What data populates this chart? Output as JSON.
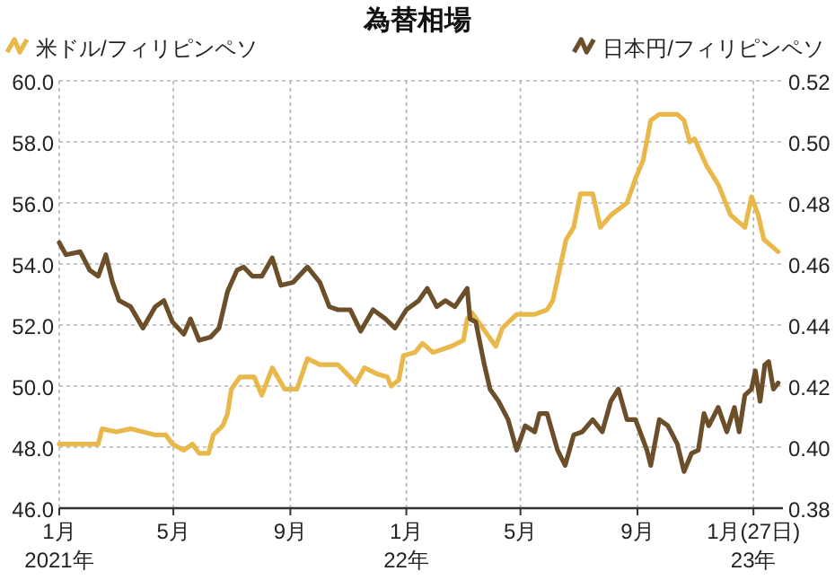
{
  "chart_data": {
    "type": "line",
    "title": "為替相場",
    "legend": "top",
    "grid": true,
    "line_style": "solid",
    "xlim": [
      "2021-01-01",
      "2023-02-01"
    ],
    "xticks": [
      {
        "value": "2021-01-01",
        "label": "1月\n2021年"
      },
      {
        "value": "2021-05-01",
        "label": "5月"
      },
      {
        "value": "2021-09-01",
        "label": "9月"
      },
      {
        "value": "2022-01-01",
        "label": "1月\n22年"
      },
      {
        "value": "2022-05-01",
        "label": "5月"
      },
      {
        "value": "2022-09-01",
        "label": "9月"
      },
      {
        "value": "2023-01-01",
        "label": "1月(27日)\n23年"
      }
    ],
    "ylim": [
      46,
      60
    ],
    "yticks": [
      {
        "value": 46,
        "label": "46.0"
      },
      {
        "value": 48,
        "label": "48.0"
      },
      {
        "value": 50,
        "label": "50.0"
      },
      {
        "value": 52,
        "label": "52.0"
      },
      {
        "value": 54,
        "label": "54.0"
      },
      {
        "value": 56,
        "label": "56.0"
      },
      {
        "value": 58,
        "label": "58.0"
      },
      {
        "value": 60,
        "label": "60.0"
      }
    ],
    "y2lim": [
      0.38,
      0.52
    ],
    "y2ticks": [
      {
        "value": 0.38,
        "label": "0.38"
      },
      {
        "value": 0.4,
        "label": "0.40"
      },
      {
        "value": 0.42,
        "label": "0.42"
      },
      {
        "value": 0.44,
        "label": "0.44"
      },
      {
        "value": 0.46,
        "label": "0.46"
      },
      {
        "value": 0.48,
        "label": "0.48"
      },
      {
        "value": 0.5,
        "label": "0.50"
      },
      {
        "value": 0.52,
        "label": "0.52"
      }
    ],
    "series": [
      {
        "name": "米ドル/フィリピンペソ",
        "color": "#e8b84a",
        "axis": "y",
        "x": [
          "2021-01-01",
          "2021-01-23",
          "2021-02-11",
          "2021-02-15",
          "2021-03-02",
          "2021-03-17",
          "2021-03-30",
          "2021-04-12",
          "2021-04-23",
          "2021-04-30",
          "2021-05-12",
          "2021-05-21",
          "2021-05-28",
          "2021-06-07",
          "2021-06-12",
          "2021-06-22",
          "2021-06-27",
          "2021-07-01",
          "2021-07-10",
          "2021-07-25",
          "2021-08-02",
          "2021-08-13",
          "2021-08-26",
          "2021-09-08",
          "2021-09-19",
          "2021-10-02",
          "2021-10-21",
          "2021-11-09",
          "2021-11-18",
          "2021-12-01",
          "2021-12-12",
          "2021-12-16",
          "2021-12-24",
          "2021-12-29",
          "2022-01-10",
          "2022-01-18",
          "2022-01-29",
          "2022-02-17",
          "2022-03-02",
          "2022-03-06",
          "2022-03-11",
          "2022-04-05",
          "2022-04-12",
          "2022-04-27",
          "2022-05-16",
          "2022-05-29",
          "2022-06-04",
          "2022-06-18",
          "2022-06-26",
          "2022-07-03",
          "2022-07-16",
          "2022-07-24",
          "2022-08-04",
          "2022-08-21",
          "2022-08-30",
          "2022-09-07",
          "2022-09-15",
          "2022-09-24",
          "2022-10-13",
          "2022-10-20",
          "2022-10-26",
          "2022-10-31",
          "2022-11-13",
          "2022-11-25",
          "2022-12-08",
          "2022-12-23",
          "2022-12-30",
          "2023-01-06",
          "2023-01-12",
          "2023-01-27"
        ],
        "values": [
          48.1,
          48.1,
          48.1,
          48.6,
          48.5,
          48.6,
          48.5,
          48.4,
          48.4,
          48.1,
          47.9,
          48.1,
          47.8,
          47.8,
          48.4,
          48.7,
          49.1,
          49.9,
          50.3,
          50.3,
          49.7,
          50.6,
          49.9,
          49.9,
          50.9,
          50.7,
          50.7,
          50.1,
          50.6,
          50.4,
          50.3,
          50.0,
          50.2,
          51.0,
          51.1,
          51.4,
          51.1,
          51.3,
          51.5,
          52.2,
          52.4,
          51.3,
          51.9,
          52.35,
          52.35,
          52.5,
          52.8,
          54.8,
          55.2,
          56.3,
          56.3,
          55.2,
          55.6,
          56.0,
          56.8,
          57.4,
          58.7,
          58.9,
          58.9,
          58.7,
          58.0,
          58.1,
          57.2,
          56.6,
          55.6,
          55.2,
          56.2,
          55.6,
          54.8,
          54.4
        ]
      },
      {
        "name": "日本円/フィリピンペソ",
        "color": "#6b4f2a",
        "axis": "y2",
        "x": [
          "2021-01-01",
          "2021-01-08",
          "2021-01-23",
          "2021-02-02",
          "2021-02-11",
          "2021-02-19",
          "2021-02-26",
          "2021-03-05",
          "2021-03-17",
          "2021-03-30",
          "2021-04-12",
          "2021-04-21",
          "2021-04-30",
          "2021-05-12",
          "2021-05-19",
          "2021-05-28",
          "2021-06-09",
          "2021-06-18",
          "2021-06-27",
          "2021-07-07",
          "2021-07-14",
          "2021-07-23",
          "2021-08-02",
          "2021-08-13",
          "2021-08-22",
          "2021-09-04",
          "2021-09-19",
          "2021-10-02",
          "2021-10-12",
          "2021-10-21",
          "2021-11-03",
          "2021-11-14",
          "2021-11-27",
          "2021-12-10",
          "2021-12-20",
          "2022-01-01",
          "2022-01-14",
          "2022-01-23",
          "2022-02-02",
          "2022-02-11",
          "2022-02-21",
          "2022-03-06",
          "2022-03-09",
          "2022-03-15",
          "2022-03-24",
          "2022-03-30",
          "2022-04-08",
          "2022-04-18",
          "2022-04-27",
          "2022-05-06",
          "2022-05-16",
          "2022-05-21",
          "2022-05-29",
          "2022-06-09",
          "2022-06-17",
          "2022-06-26",
          "2022-07-05",
          "2022-07-16",
          "2022-07-26",
          "2022-08-04",
          "2022-08-12",
          "2022-08-21",
          "2022-08-30",
          "2022-09-11",
          "2022-09-15",
          "2022-09-24",
          "2022-10-03",
          "2022-10-13",
          "2022-10-20",
          "2022-10-28",
          "2022-11-04",
          "2022-11-10",
          "2022-11-15",
          "2022-11-25",
          "2022-12-04",
          "2022-12-12",
          "2022-12-17",
          "2022-12-23",
          "2022-12-30",
          "2023-01-03",
          "2023-01-08",
          "2023-01-13",
          "2023-01-17",
          "2023-01-22",
          "2023-01-27"
        ],
        "values": [
          0.467,
          0.463,
          0.464,
          0.458,
          0.456,
          0.463,
          0.454,
          0.448,
          0.446,
          0.439,
          0.446,
          0.448,
          0.441,
          0.437,
          0.442,
          0.435,
          0.436,
          0.439,
          0.451,
          0.458,
          0.459,
          0.456,
          0.456,
          0.462,
          0.453,
          0.454,
          0.459,
          0.454,
          0.446,
          0.445,
          0.445,
          0.438,
          0.445,
          0.442,
          0.439,
          0.445,
          0.448,
          0.452,
          0.446,
          0.448,
          0.446,
          0.452,
          0.442,
          0.441,
          0.427,
          0.419,
          0.415,
          0.409,
          0.399,
          0.407,
          0.405,
          0.411,
          0.411,
          0.399,
          0.394,
          0.404,
          0.405,
          0.409,
          0.405,
          0.415,
          0.419,
          0.409,
          0.409,
          0.399,
          0.394,
          0.409,
          0.407,
          0.401,
          0.392,
          0.398,
          0.399,
          0.411,
          0.407,
          0.413,
          0.405,
          0.413,
          0.405,
          0.417,
          0.419,
          0.425,
          0.415,
          0.427,
          0.428,
          0.419,
          0.421
        ]
      }
    ]
  }
}
